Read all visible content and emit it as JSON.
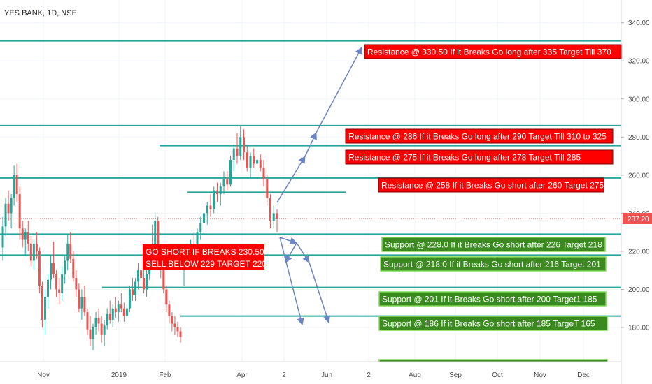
{
  "chart_data": {
    "type": "candlestick",
    "title": "YES BANK, 1D, NSE",
    "y_axis": {
      "min": 162,
      "max": 352,
      "ticks": [
        180,
        200,
        220,
        240,
        260,
        280,
        300,
        320,
        340
      ],
      "tick_labels": [
        "180.00",
        "200.00",
        "220.00",
        "240.00",
        "260.00",
        "280.00",
        "300.00",
        "320.00",
        "340.00"
      ],
      "position": "right"
    },
    "x_axis": {
      "labels": [
        "Nov",
        "2019",
        "Feb",
        "Apr",
        "2",
        "Jun",
        "2",
        "Aug",
        "Sep",
        "Oct",
        "Nov",
        "Dec"
      ]
    },
    "last_price": {
      "value": 237.2,
      "label": "237.20",
      "color": "#ef5350"
    },
    "colors": {
      "up": "#26a69a",
      "down": "#ef5350",
      "level_line": "#26a69a",
      "arrow": "#6b84c4",
      "resistance_box": "#ff0000",
      "support_box": "#3a8a1f",
      "support_border": "#7ed957"
    },
    "candles": [
      {
        "o": 222,
        "h": 238,
        "l": 215,
        "c": 233
      },
      {
        "o": 233,
        "h": 248,
        "l": 228,
        "c": 245
      },
      {
        "o": 245,
        "h": 252,
        "l": 236,
        "c": 240
      },
      {
        "o": 240,
        "h": 250,
        "l": 232,
        "c": 248
      },
      {
        "o": 248,
        "h": 265,
        "l": 244,
        "c": 260
      },
      {
        "o": 260,
        "h": 266,
        "l": 246,
        "c": 250
      },
      {
        "o": 250,
        "h": 254,
        "l": 226,
        "c": 232
      },
      {
        "o": 232,
        "h": 236,
        "l": 222,
        "c": 226
      },
      {
        "o": 226,
        "h": 232,
        "l": 218,
        "c": 230
      },
      {
        "o": 230,
        "h": 236,
        "l": 220,
        "c": 224
      },
      {
        "o": 224,
        "h": 228,
        "l": 212,
        "c": 215
      },
      {
        "o": 215,
        "h": 226,
        "l": 210,
        "c": 224
      },
      {
        "o": 224,
        "h": 230,
        "l": 216,
        "c": 220
      },
      {
        "o": 220,
        "h": 222,
        "l": 198,
        "c": 202
      },
      {
        "o": 202,
        "h": 204,
        "l": 180,
        "c": 184
      },
      {
        "o": 184,
        "h": 200,
        "l": 176,
        "c": 196
      },
      {
        "o": 196,
        "h": 208,
        "l": 190,
        "c": 205
      },
      {
        "o": 205,
        "h": 218,
        "l": 200,
        "c": 214
      },
      {
        "o": 214,
        "h": 225,
        "l": 206,
        "c": 208
      },
      {
        "o": 208,
        "h": 210,
        "l": 196,
        "c": 200
      },
      {
        "o": 200,
        "h": 206,
        "l": 192,
        "c": 198
      },
      {
        "o": 198,
        "h": 212,
        "l": 194,
        "c": 208
      },
      {
        "o": 208,
        "h": 218,
        "l": 203,
        "c": 215
      },
      {
        "o": 215,
        "h": 229,
        "l": 210,
        "c": 224
      },
      {
        "o": 224,
        "h": 230,
        "l": 214,
        "c": 216
      },
      {
        "o": 216,
        "h": 220,
        "l": 204,
        "c": 206
      },
      {
        "o": 206,
        "h": 210,
        "l": 196,
        "c": 200
      },
      {
        "o": 200,
        "h": 203,
        "l": 188,
        "c": 190
      },
      {
        "o": 190,
        "h": 200,
        "l": 184,
        "c": 196
      },
      {
        "o": 196,
        "h": 202,
        "l": 186,
        "c": 188
      },
      {
        "o": 188,
        "h": 190,
        "l": 176,
        "c": 179
      },
      {
        "o": 179,
        "h": 186,
        "l": 170,
        "c": 174
      },
      {
        "o": 174,
        "h": 182,
        "l": 168,
        "c": 180
      },
      {
        "o": 180,
        "h": 188,
        "l": 176,
        "c": 185
      },
      {
        "o": 185,
        "h": 190,
        "l": 178,
        "c": 182
      },
      {
        "o": 182,
        "h": 186,
        "l": 172,
        "c": 176
      },
      {
        "o": 176,
        "h": 184,
        "l": 170,
        "c": 181
      },
      {
        "o": 181,
        "h": 190,
        "l": 179,
        "c": 187
      },
      {
        "o": 187,
        "h": 194,
        "l": 182,
        "c": 184
      },
      {
        "o": 184,
        "h": 192,
        "l": 180,
        "c": 190
      },
      {
        "o": 190,
        "h": 196,
        "l": 185,
        "c": 188
      },
      {
        "o": 188,
        "h": 194,
        "l": 183,
        "c": 192
      },
      {
        "o": 192,
        "h": 198,
        "l": 188,
        "c": 190
      },
      {
        "o": 190,
        "h": 193,
        "l": 183,
        "c": 186
      },
      {
        "o": 186,
        "h": 192,
        "l": 182,
        "c": 190
      },
      {
        "o": 190,
        "h": 202,
        "l": 188,
        "c": 200
      },
      {
        "o": 200,
        "h": 206,
        "l": 194,
        "c": 197
      },
      {
        "o": 197,
        "h": 206,
        "l": 194,
        "c": 204
      },
      {
        "o": 204,
        "h": 214,
        "l": 200,
        "c": 210
      },
      {
        "o": 210,
        "h": 216,
        "l": 204,
        "c": 206
      },
      {
        "o": 206,
        "h": 212,
        "l": 198,
        "c": 200
      },
      {
        "o": 200,
        "h": 210,
        "l": 196,
        "c": 208
      },
      {
        "o": 208,
        "h": 222,
        "l": 205,
        "c": 220
      },
      {
        "o": 220,
        "h": 234,
        "l": 212,
        "c": 216
      },
      {
        "o": 216,
        "h": 240,
        "l": 212,
        "c": 236
      },
      {
        "o": 236,
        "h": 238,
        "l": 212,
        "c": 215
      },
      {
        "o": 215,
        "h": 218,
        "l": 206,
        "c": 210
      },
      {
        "o": 210,
        "h": 213,
        "l": 198,
        "c": 200
      },
      {
        "o": 200,
        "h": 202,
        "l": 188,
        "c": 192
      },
      {
        "o": 192,
        "h": 194,
        "l": 182,
        "c": 186
      },
      {
        "o": 186,
        "h": 188,
        "l": 178,
        "c": 182
      },
      {
        "o": 182,
        "h": 186,
        "l": 176,
        "c": 180
      },
      {
        "o": 180,
        "h": 183,
        "l": 175,
        "c": 178
      },
      {
        "o": 178,
        "h": 180,
        "l": 172,
        "c": 175
      },
      {
        "o": 210,
        "h": 218,
        "l": 202,
        "c": 216
      },
      {
        "o": 216,
        "h": 224,
        "l": 210,
        "c": 220
      },
      {
        "o": 220,
        "h": 226,
        "l": 212,
        "c": 224
      },
      {
        "o": 224,
        "h": 230,
        "l": 218,
        "c": 222
      },
      {
        "o": 222,
        "h": 232,
        "l": 220,
        "c": 230
      },
      {
        "o": 230,
        "h": 238,
        "l": 226,
        "c": 235
      },
      {
        "o": 235,
        "h": 244,
        "l": 230,
        "c": 240
      },
      {
        "o": 240,
        "h": 246,
        "l": 234,
        "c": 244
      },
      {
        "o": 244,
        "h": 250,
        "l": 238,
        "c": 242
      },
      {
        "o": 242,
        "h": 254,
        "l": 240,
        "c": 252
      },
      {
        "o": 252,
        "h": 256,
        "l": 246,
        "c": 250
      },
      {
        "o": 250,
        "h": 256,
        "l": 244,
        "c": 254
      },
      {
        "o": 254,
        "h": 262,
        "l": 250,
        "c": 258
      },
      {
        "o": 258,
        "h": 262,
        "l": 252,
        "c": 255
      },
      {
        "o": 255,
        "h": 270,
        "l": 254,
        "c": 268
      },
      {
        "o": 268,
        "h": 276,
        "l": 262,
        "c": 274
      },
      {
        "o": 274,
        "h": 282,
        "l": 266,
        "c": 270
      },
      {
        "o": 270,
        "h": 286,
        "l": 268,
        "c": 280
      },
      {
        "o": 280,
        "h": 284,
        "l": 268,
        "c": 272
      },
      {
        "o": 272,
        "h": 276,
        "l": 262,
        "c": 264
      },
      {
        "o": 264,
        "h": 272,
        "l": 258,
        "c": 270
      },
      {
        "o": 270,
        "h": 274,
        "l": 264,
        "c": 266
      },
      {
        "o": 266,
        "h": 272,
        "l": 262,
        "c": 268
      },
      {
        "o": 268,
        "h": 271,
        "l": 262,
        "c": 264
      },
      {
        "o": 264,
        "h": 268,
        "l": 254,
        "c": 258
      },
      {
        "o": 258,
        "h": 260,
        "l": 244,
        "c": 248
      },
      {
        "o": 248,
        "h": 250,
        "l": 232,
        "c": 236
      },
      {
        "o": 236,
        "h": 244,
        "l": 232,
        "c": 240
      },
      {
        "o": 240,
        "h": 242,
        "l": 230,
        "c": 237
      }
    ],
    "level_lines": [
      {
        "y": 330.5,
        "x1": 0,
        "x2": 888
      },
      {
        "y": 286,
        "x1": 0,
        "x2": 888
      },
      {
        "y": 275.5,
        "x1": 228,
        "x2": 888
      },
      {
        "y": 258.5,
        "x1": 0,
        "x2": 888
      },
      {
        "y": 251,
        "x1": 268,
        "x2": 494
      },
      {
        "y": 229,
        "x1": 0,
        "x2": 888
      },
      {
        "y": 218,
        "x1": 0,
        "x2": 888
      },
      {
        "y": 201,
        "x1": 146,
        "x2": 888
      },
      {
        "y": 186,
        "x1": 258,
        "x2": 888
      }
    ],
    "annotations": [
      {
        "kind": "resistance",
        "text": "Resistance @ 330.50  If it Breaks Go long after 335 Target Till 370"
      },
      {
        "kind": "resistance",
        "text": "Resistance @ 286  If it Breaks Go long after 290 Target Till 310 to  325"
      },
      {
        "kind": "resistance",
        "text": "Resistance @ 275  If it Breaks Go long after 278 Target Till 285"
      },
      {
        "kind": "resistance",
        "text": "Resistance @ 258 If it Breaks Go short after 260 Target 275"
      },
      {
        "kind": "support",
        "text": "Support @ 228.0 If it Breaks Go short after 226 Target 218"
      },
      {
        "kind": "support",
        "text": "Support @ 218.0 If it Breaks Go short after 216 Target 201"
      },
      {
        "kind": "support",
        "text": "Support @ 201  If it Breaks Go short after 200  Target1 185"
      },
      {
        "kind": "support",
        "text": "Support @ 186  If it Breaks Go short after 185  TargeT 165"
      },
      {
        "kind": "short",
        "line1": "GO SHORT IF BREAKS 230.50",
        "line2": "SELL BELOW 229 TARGET 220"
      }
    ]
  }
}
